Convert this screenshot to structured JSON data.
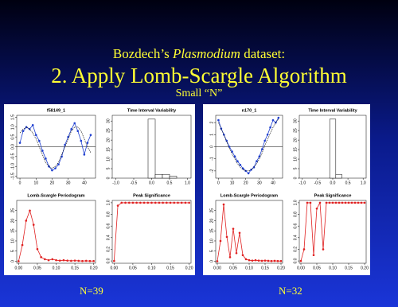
{
  "slide": {
    "title_prefix": "Bozdech’s ",
    "title_italic": "Plasmodium",
    "title_suffix": " dataset:",
    "heading": "2.  Apply Lomb-Scargle Algorithm",
    "subheading": "Small “N”",
    "panel_labels": [
      "N=39",
      "N=32"
    ]
  },
  "chart_data": [
    {
      "type": "line",
      "title": "f58149_1",
      "x": [
        0,
        2,
        4,
        6,
        8,
        10,
        12,
        14,
        16,
        18,
        20,
        22,
        24,
        26,
        28,
        30,
        32,
        34,
        36,
        38,
        40,
        42,
        44
      ],
      "series": [
        {
          "color": "#2040d0",
          "style": "points",
          "values": [
            0.2,
            0.8,
            1.0,
            0.9,
            1.1,
            0.6,
            0.3,
            -0.2,
            -0.6,
            -1.0,
            -1.2,
            -1.1,
            -0.9,
            -0.5,
            0.1,
            0.5,
            0.9,
            1.2,
            0.8,
            0.3,
            -0.4,
            0.2,
            0.6
          ]
        },
        {
          "color": "#000000",
          "style": "line",
          "values": [
            0.7,
            0.9,
            1.0,
            0.9,
            0.7,
            0.4,
            0.0,
            -0.4,
            -0.8,
            -1.0,
            -1.1,
            -1.0,
            -0.8,
            -0.4,
            0.0,
            0.4,
            0.8,
            1.0,
            1.0,
            0.8,
            0.4,
            0.0,
            -0.3
          ]
        }
      ],
      "hline": 0,
      "xlim": [
        -2,
        47
      ],
      "xticks": [
        0,
        10,
        20,
        30,
        40
      ],
      "ylim": [
        -1.6,
        1.6
      ],
      "yticks": [
        -1.5,
        {
          "value": -1.0,
          "label": "-1.0"
        },
        -0.5,
        {
          "value": 0,
          "label": "0.0"
        },
        0.5,
        {
          "value": 1.0,
          "label": "1.0"
        },
        1.5
      ]
    },
    {
      "type": "histogram",
      "title": "Time Interval Variability",
      "bins": [
        -0.1,
        0.1,
        0.3,
        0.5,
        0.7
      ],
      "values": [
        31,
        2,
        2,
        1
      ],
      "color": "#ffffff",
      "xlim": [
        -1.1,
        1.1
      ],
      "xticks": [
        {
          "value": -1.0,
          "label": "-1.0"
        },
        -0.5,
        {
          "value": 0,
          "label": "0.0"
        },
        0.5,
        {
          "value": 1.0,
          "label": "1.0"
        }
      ],
      "ylim": [
        0,
        33
      ],
      "yticks": [
        0,
        5,
        10,
        15,
        20,
        25,
        30
      ]
    },
    {
      "type": "line",
      "title": "Lomb-Scargle Periodogram",
      "x": [
        0,
        0.01,
        0.02,
        0.03,
        0.04,
        0.05,
        0.06,
        0.07,
        0.08,
        0.09,
        0.1,
        0.11,
        0.12,
        0.13,
        0.14,
        0.15,
        0.16,
        0.17,
        0.18,
        0.19,
        0.2
      ],
      "series": [
        {
          "color": "#e02020",
          "style": "points",
          "values": [
            0,
            8,
            20,
            25,
            18,
            6,
            2,
            1,
            0.5,
            1,
            0.5,
            0.3,
            0.5,
            0.3,
            0.2,
            0.3,
            0.2,
            0.1,
            0.2,
            0.1,
            0.1
          ]
        }
      ],
      "xlim": [
        -0.005,
        0.205
      ],
      "xticks": [
        {
          "value": 0,
          "label": "0.00"
        },
        0.05,
        {
          "value": 0.1,
          "label": "0.10"
        },
        0.15,
        {
          "value": 0.2,
          "label": "0.20"
        }
      ],
      "ylim": [
        -1,
        30
      ],
      "yticks": [
        0,
        5,
        10,
        15,
        20,
        25
      ]
    },
    {
      "type": "line",
      "title": "Peak Significance",
      "x": [
        0,
        0.01,
        0.02,
        0.03,
        0.04,
        0.05,
        0.06,
        0.07,
        0.08,
        0.09,
        0.1,
        0.11,
        0.12,
        0.13,
        0.14,
        0.15,
        0.16,
        0.17,
        0.18,
        0.19,
        0.2
      ],
      "series": [
        {
          "color": "#e02020",
          "style": "points",
          "values": [
            0,
            0.95,
            1,
            1,
            1,
            1,
            1,
            1,
            1,
            1,
            1,
            1,
            1,
            1,
            1,
            1,
            1,
            1,
            1,
            1,
            1
          ]
        }
      ],
      "xlim": [
        -0.005,
        0.205
      ],
      "xticks": [
        {
          "value": 0,
          "label": "0.00"
        },
        0.05,
        {
          "value": 0.1,
          "label": "0.10"
        },
        0.15,
        {
          "value": 0.2,
          "label": "0.20"
        }
      ],
      "ylim": [
        -0.04,
        1.04
      ],
      "yticks": [
        {
          "value": 0,
          "label": "0.0"
        },
        0.2,
        0.4,
        0.6,
        0.8,
        {
          "value": 1,
          "label": "1.0"
        }
      ]
    },
    {
      "type": "line",
      "title": "n170_1",
      "x": [
        0,
        2,
        4,
        6,
        8,
        10,
        12,
        14,
        16,
        18,
        20,
        22,
        24,
        26,
        28,
        30,
        32,
        34,
        36,
        38,
        40,
        42,
        44
      ],
      "series": [
        {
          "color": "#2040d0",
          "style": "points",
          "values": [
            2.2,
            1.5,
            1.0,
            0.5,
            0,
            -0.4,
            -0.8,
            -1.2,
            -1.5,
            -1.8,
            -2.0,
            -2.2,
            -1.9,
            -1.7,
            -1.2,
            -0.8,
            -0.2,
            0.5,
            1.0,
            1.6,
            2.2,
            2.0,
            2.4
          ]
        },
        {
          "color": "#000000",
          "style": "line",
          "values": [
            2.0,
            1.5,
            1.0,
            0.4,
            -0.1,
            -0.6,
            -1.0,
            -1.4,
            -1.7,
            -1.9,
            -2.0,
            -2.0,
            -1.9,
            -1.7,
            -1.4,
            -1.0,
            -0.5,
            0.1,
            0.6,
            1.1,
            1.6,
            2.0,
            2.3
          ]
        }
      ],
      "hline": 0,
      "xlim": [
        -2,
        47
      ],
      "xticks": [
        0,
        10,
        20,
        30,
        40
      ],
      "ylim": [
        -2.6,
        2.6
      ],
      "yticks": [
        -2,
        -1,
        0,
        1,
        2
      ]
    },
    {
      "type": "histogram",
      "title": "Time Interval Variability",
      "bins": [
        -0.1,
        0.1,
        0.3
      ],
      "values": [
        31,
        2
      ],
      "color": "#ffffff",
      "xlim": [
        -1.1,
        1.1
      ],
      "xticks": [
        {
          "value": -1.0,
          "label": "-1.0"
        },
        -0.5,
        {
          "value": 0,
          "label": "0.0"
        },
        0.5,
        {
          "value": 1.0,
          "label": "1.0"
        }
      ],
      "ylim": [
        0,
        33
      ],
      "yticks": [
        0,
        5,
        10,
        15,
        20,
        25,
        30
      ]
    },
    {
      "type": "line",
      "title": "Lomb-Scargle Periodogram",
      "x": [
        0,
        0.01,
        0.02,
        0.03,
        0.04,
        0.05,
        0.06,
        0.07,
        0.08,
        0.09,
        0.1,
        0.11,
        0.12,
        0.13,
        0.14,
        0.15,
        0.16,
        0.17,
        0.18,
        0.19,
        0.2
      ],
      "series": [
        {
          "color": "#e02020",
          "style": "points",
          "values": [
            0,
            10,
            28,
            12,
            2,
            16,
            4,
            14,
            3,
            1,
            0.5,
            0.3,
            0.5,
            0.3,
            0.2,
            0.3,
            0.2,
            0.1,
            0.2,
            0.1,
            0.1
          ]
        }
      ],
      "xlim": [
        -0.005,
        0.205
      ],
      "xticks": [
        {
          "value": 0,
          "label": "0.00"
        },
        0.05,
        {
          "value": 0.1,
          "label": "0.10"
        },
        0.15,
        {
          "value": 0.2,
          "label": "0.20"
        }
      ],
      "ylim": [
        -1,
        30
      ],
      "yticks": [
        0,
        5,
        10,
        15,
        20,
        25
      ]
    },
    {
      "type": "line",
      "title": "Peak Significance",
      "x": [
        0,
        0.01,
        0.02,
        0.03,
        0.04,
        0.05,
        0.06,
        0.07,
        0.08,
        0.09,
        0.1,
        0.11,
        0.12,
        0.13,
        0.14,
        0.15,
        0.16,
        0.17,
        0.18,
        0.19,
        0.2
      ],
      "series": [
        {
          "color": "#e02020",
          "style": "points",
          "values": [
            0,
            0.2,
            1,
            1,
            0.1,
            0.9,
            1,
            0.2,
            1,
            1,
            1,
            1,
            1,
            1,
            1,
            1,
            1,
            1,
            1,
            1,
            1
          ]
        }
      ],
      "xlim": [
        -0.005,
        0.205
      ],
      "xticks": [
        {
          "value": 0,
          "label": "0.00"
        },
        0.05,
        {
          "value": 0.1,
          "label": "0.10"
        },
        0.15,
        {
          "value": 0.2,
          "label": "0.20"
        }
      ],
      "ylim": [
        -0.04,
        1.04
      ],
      "yticks": [
        {
          "value": 0,
          "label": "0.0"
        },
        0.2,
        0.4,
        0.6,
        0.8,
        {
          "value": 1,
          "label": "1.0"
        }
      ]
    }
  ]
}
